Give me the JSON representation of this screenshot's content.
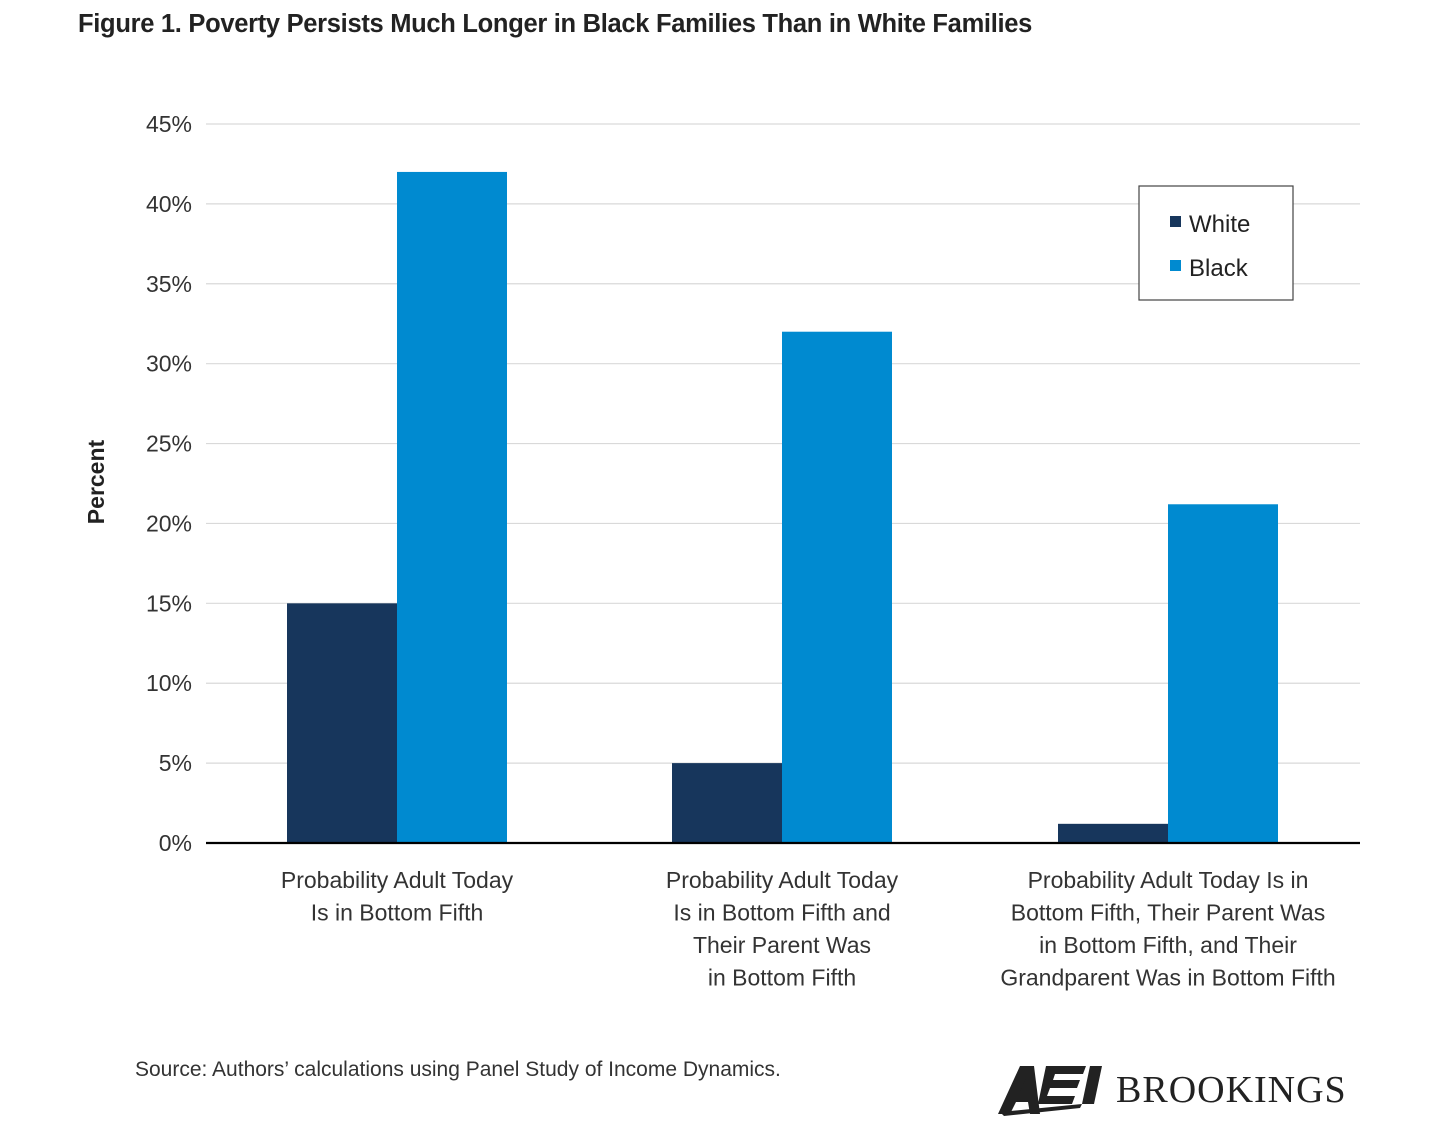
{
  "title": "Figure 1. Poverty Persists Much Longer in Black Families Than in White Families",
  "source": "Source: Authors’ calculations using Panel Study of Income Dynamics.",
  "logo": {
    "left": "AEI",
    "right": "BROOKINGS"
  },
  "colors": {
    "white": "#17365c",
    "black": "#008ad0",
    "grid": "#d9d9d9",
    "axis": "#000000"
  },
  "chart_data": {
    "type": "bar",
    "ylabel": "Percent",
    "xlabel": "",
    "ylim": [
      0,
      45
    ],
    "yticks": [
      0,
      5,
      10,
      15,
      20,
      25,
      30,
      35,
      40,
      45
    ],
    "ytick_labels": [
      "0%",
      "5%",
      "10%",
      "15%",
      "20%",
      "25%",
      "30%",
      "35%",
      "40%",
      "45%"
    ],
    "categories": [
      [
        "Probability Adult Today",
        "Is in Bottom Fifth"
      ],
      [
        "Probability Adult Today",
        "Is in Bottom Fifth and",
        "Their Parent  Was",
        "in Bottom Fifth"
      ],
      [
        "Probability Adult Today Is in",
        "Bottom Fifth, Their Parent Was",
        "in Bottom Fifth, and Their",
        "Grandparent Was in Bottom Fifth"
      ]
    ],
    "series": [
      {
        "name": "White",
        "values": [
          15,
          5,
          1.2
        ]
      },
      {
        "name": "Black",
        "values": [
          42,
          32,
          21.2
        ]
      }
    ],
    "grid": true,
    "legend_position": "top-right"
  }
}
